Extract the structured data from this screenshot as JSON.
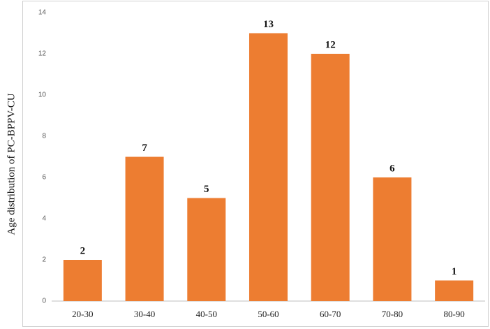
{
  "chart_data": {
    "type": "bar",
    "ylabel": "Age distribution of PC-BPPV-CU",
    "categories": [
      "20-30",
      "30-40",
      "40-50",
      "50-60",
      "60-70",
      "70-80",
      "80-90"
    ],
    "values": [
      2,
      7,
      5,
      13,
      12,
      6,
      1
    ],
    "color": "#ed7d31",
    "ylim": [
      0,
      14
    ],
    "yticks": [
      0,
      2,
      4,
      6,
      8,
      10,
      12,
      14
    ],
    "grid": false
  }
}
